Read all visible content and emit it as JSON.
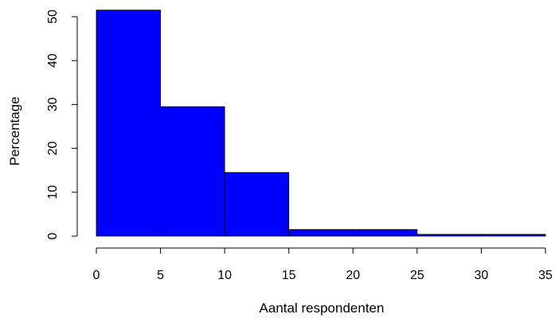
{
  "chart_data": {
    "type": "bar",
    "subtype": "histogram",
    "bins": [
      {
        "from": 0,
        "to": 5,
        "value": 51.5
      },
      {
        "from": 5,
        "to": 10,
        "value": 29.5
      },
      {
        "from": 10,
        "to": 15,
        "value": 14.5
      },
      {
        "from": 15,
        "to": 20,
        "value": 1.5
      },
      {
        "from": 20,
        "to": 25,
        "value": 1.5
      },
      {
        "from": 25,
        "to": 30,
        "value": 0.4
      },
      {
        "from": 30,
        "to": 35,
        "value": 0.4
      }
    ],
    "xlabel": "Aantal respondenten",
    "ylabel": "Percentage",
    "xlim": [
      0,
      35
    ],
    "ylim": [
      0,
      50
    ],
    "x_ticks": [
      "0",
      "5",
      "10",
      "15",
      "20",
      "25",
      "30",
      "35"
    ],
    "y_ticks": [
      "0",
      "10",
      "20",
      "30",
      "40",
      "50"
    ],
    "bar_color": "#0000ff",
    "grid": false,
    "legend": "none"
  }
}
